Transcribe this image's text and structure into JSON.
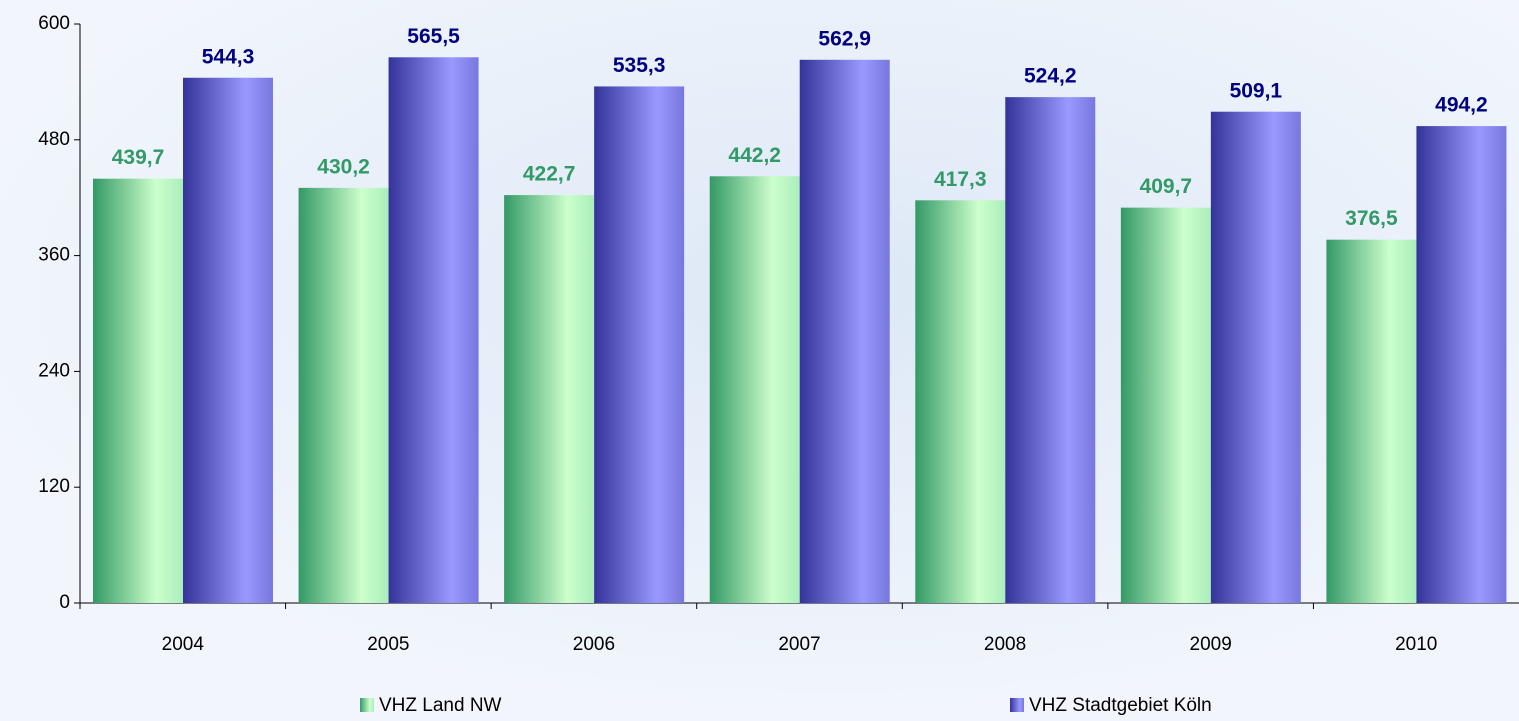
{
  "chart_data": {
    "type": "bar",
    "categories": [
      "2004",
      "2005",
      "2006",
      "2007",
      "2008",
      "2009",
      "2010"
    ],
    "series": [
      {
        "name": "VHZ Land NW",
        "color": "#339966",
        "values": [
          439.7,
          430.2,
          422.7,
          442.2,
          417.3,
          409.7,
          376.5
        ],
        "value_labels": [
          "439,7",
          "430,2",
          "422,7",
          "442,2",
          "417,3",
          "409,7",
          "376,5"
        ]
      },
      {
        "name": "VHZ Stadtgebiet Köln",
        "color": "#333399",
        "values": [
          544.3,
          565.5,
          535.3,
          562.9,
          524.2,
          509.1,
          494.2
        ],
        "value_labels": [
          "544,3",
          "565,5",
          "535,3",
          "562,9",
          "524,2",
          "509,1",
          "494,2"
        ]
      }
    ],
    "ylim": [
      0,
      600
    ],
    "yticks": [
      0,
      120,
      240,
      360,
      480,
      600
    ],
    "legend": "bottom"
  }
}
